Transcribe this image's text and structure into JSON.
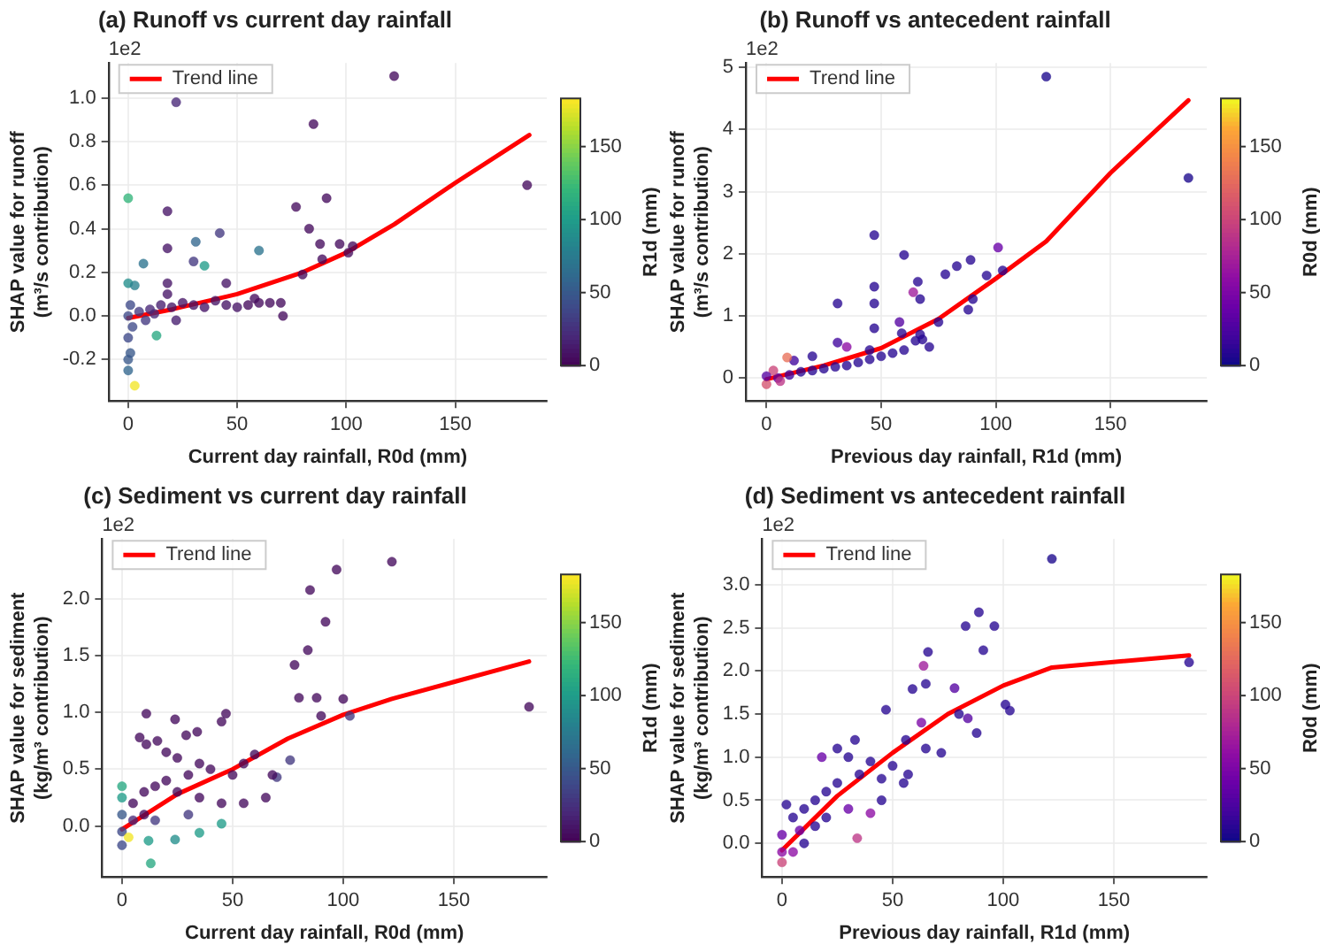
{
  "chart_data": [
    {
      "type": "scatter",
      "title": "(a) Runoff vs current day rainfall",
      "xlabel": "Current day rainfall, R0d (mm)",
      "ylabel": "SHAP value for runoff\n(m³/s contribution)",
      "clabel": "R1d (mm)",
      "annotations": [
        "1e2"
      ],
      "xlim": [
        -9,
        192
      ],
      "xticks": [
        0,
        50,
        100,
        150
      ],
      "ylim": [
        -0.39,
        1.16
      ],
      "yticks": [
        {
          "value": -0.2,
          "label": "-0.2"
        },
        {
          "value": 0,
          "label": "0.0"
        },
        {
          "value": 0.2,
          "label": "0.2"
        },
        {
          "value": 0.4,
          "label": "0.4"
        },
        {
          "value": 0.6,
          "label": "0.6"
        },
        {
          "value": 0.8,
          "label": "0.8"
        },
        {
          "value": 1,
          "label": "1.0"
        }
      ],
      "clim": [
        0,
        183
      ],
      "cticks": [
        0,
        50,
        100,
        150
      ],
      "grid": true,
      "legend": "top left",
      "series": [
        {
          "type": "scatter",
          "marker": "circle",
          "x": [
            122,
            22,
            85,
            183,
            0,
            77,
            18,
            91,
            83,
            42,
            31,
            60,
            18,
            35,
            7,
            30,
            88,
            97,
            103,
            101,
            89,
            80,
            0,
            3,
            13,
            3,
            0,
            0,
            1,
            0,
            2,
            0,
            1,
            5,
            10,
            15,
            18,
            18,
            20,
            25,
            30,
            35,
            40,
            45,
            45,
            50,
            55,
            60,
            65,
            70,
            71,
            58,
            22,
            12,
            8
          ],
          "values": [
            1.1,
            0.98,
            0.88,
            0.6,
            0.54,
            0.5,
            0.48,
            0.54,
            0.4,
            0.38,
            0.34,
            0.3,
            0.31,
            0.23,
            0.24,
            0.25,
            0.33,
            0.33,
            0.32,
            0.29,
            0.26,
            0.19,
            0.15,
            0.14,
            -0.09,
            -0.32,
            -0.25,
            -0.2,
            -0.17,
            -0.1,
            -0.05,
            0,
            0.05,
            0.02,
            0.03,
            0.05,
            0.15,
            0.1,
            0.04,
            0.06,
            0.05,
            0.04,
            0.07,
            0.15,
            0.05,
            0.04,
            0.05,
            0.06,
            0.06,
            0.06,
            0,
            0.08,
            -0.02,
            0.01,
            -0.02
          ],
          "cvalues": [
            5,
            20,
            5,
            5,
            120,
            5,
            10,
            5,
            5,
            30,
            60,
            70,
            10,
            100,
            70,
            30,
            5,
            5,
            5,
            5,
            5,
            5,
            90,
            80,
            110,
            180,
            60,
            50,
            50,
            40,
            40,
            40,
            40,
            30,
            20,
            15,
            10,
            10,
            10,
            10,
            10,
            10,
            10,
            10,
            10,
            10,
            5,
            5,
            5,
            5,
            5,
            5,
            15,
            20,
            30
          ],
          "colors": [
            "#450b5d",
            "#482777",
            "#450b5d",
            "#450b5d",
            "#33b57b",
            "#450b5d",
            "#461466",
            "#450b5d",
            "#450b5d",
            "#433880",
            "#32668e",
            "#2c738e",
            "#461466",
            "#209c89",
            "#2c738e",
            "#433880",
            "#450b5d",
            "#450b5d",
            "#450b5d",
            "#450b5d",
            "#450b5d",
            "#450b5d",
            "#238e8c",
            "#27808e",
            "#28a882",
            "#f2e626",
            "#32668e",
            "#38588b",
            "#38588b",
            "#3e4989",
            "#3e4989",
            "#3e4989",
            "#3e4989",
            "#433880",
            "#482777",
            "#471e6f",
            "#461466",
            "#461466",
            "#461466",
            "#461466",
            "#461466",
            "#461466",
            "#461466",
            "#461466",
            "#461466",
            "#461466",
            "#450b5d",
            "#450b5d",
            "#450b5d",
            "#450b5d",
            "#450b5d",
            "#450b5d",
            "#471e6f",
            "#482777",
            "#433880"
          ]
        },
        {
          "type": "line",
          "name": "Trend line",
          "color": "#ff0000",
          "marker": "none",
          "x": [
            0,
            20,
            50,
            80,
            100,
            122,
            150,
            184
          ],
          "values": [
            -0.01,
            0.03,
            0.1,
            0.2,
            0.29,
            0.42,
            0.61,
            0.83
          ]
        }
      ]
    },
    {
      "type": "scatter",
      "title": "(b) Runoff vs antecedent rainfall",
      "xlabel": "Previous day rainfall, R1d (mm)",
      "ylabel": "SHAP value for runoff\n(m³/s contribution)",
      "clabel": "R0d (mm)",
      "annotations": [
        "1e2"
      ],
      "xlim": [
        -9,
        192
      ],
      "xticks": [
        0,
        50,
        100,
        150
      ],
      "ylim": [
        -0.37,
        5.07
      ],
      "yticks": [
        0,
        1,
        2,
        3,
        4,
        5
      ],
      "clim": [
        0,
        183
      ],
      "cticks": [
        0,
        50,
        100,
        150
      ],
      "grid": true,
      "legend": "top left",
      "series": [
        {
          "type": "scatter",
          "marker": "circle",
          "x": [
            122,
            184,
            47,
            60,
            101,
            89,
            83,
            78,
            96,
            66,
            103,
            47,
            47,
            31,
            67,
            90,
            64,
            88,
            58,
            75,
            47,
            59,
            67,
            71,
            65,
            31,
            35,
            55,
            50,
            45,
            40,
            35,
            30,
            25,
            20,
            20,
            15,
            12,
            10,
            9,
            5,
            3,
            0,
            0,
            6,
            45,
            60,
            68
          ],
          "values": [
            4.85,
            3.22,
            2.3,
            1.98,
            2.1,
            1.9,
            1.8,
            1.67,
            1.65,
            1.55,
            1.73,
            1.47,
            1.2,
            1.2,
            1.27,
            1.27,
            1.38,
            1.1,
            0.9,
            0.9,
            0.8,
            0.72,
            0.7,
            0.5,
            0.6,
            0.57,
            0.5,
            0.4,
            0.35,
            0.3,
            0.25,
            0.2,
            0.18,
            0.15,
            0.12,
            0.35,
            0.1,
            0.28,
            0.05,
            0.33,
            0,
            0.12,
            -0.1,
            0.03,
            -0.05,
            0.45,
            0.45,
            0.62
          ],
          "cvalues": [
            5,
            5,
            10,
            10,
            40,
            10,
            10,
            10,
            10,
            10,
            10,
            10,
            10,
            10,
            10,
            10,
            70,
            10,
            30,
            10,
            10,
            10,
            10,
            10,
            10,
            20,
            60,
            10,
            10,
            10,
            10,
            10,
            10,
            10,
            10,
            10,
            10,
            20,
            20,
            130,
            30,
            100,
            110,
            30,
            90,
            10,
            10,
            10
          ],
          "colors": [
            "#1a078c",
            "#1a078c",
            "#260692",
            "#260692",
            "#6900a8",
            "#260692",
            "#260692",
            "#260692",
            "#260692",
            "#260692",
            "#260692",
            "#260692",
            "#260692",
            "#260692",
            "#260692",
            "#260692",
            "#9e1a9b",
            "#260692",
            "#5402a2",
            "#260692",
            "#260692",
            "#260692",
            "#260692",
            "#260692",
            "#260692",
            "#40049d",
            "#8d0ca4",
            "#260692",
            "#260692",
            "#260692",
            "#260692",
            "#260692",
            "#260692",
            "#260692",
            "#260692",
            "#260692",
            "#260692",
            "#40049d",
            "#40049d",
            "#e87059",
            "#5402a2",
            "#ca457a",
            "#d5536f",
            "#5402a2",
            "#bd3686",
            "#260692",
            "#260692",
            "#260692"
          ]
        },
        {
          "type": "line",
          "name": "Trend line",
          "color": "#ff0000",
          "marker": "none",
          "x": [
            0,
            25,
            50,
            75,
            100,
            122,
            150,
            184
          ],
          "values": [
            -0.02,
            0.2,
            0.48,
            0.95,
            1.6,
            2.2,
            3.3,
            4.47
          ]
        }
      ]
    },
    {
      "type": "scatter",
      "title": "(c) Sediment vs current day rainfall",
      "xlabel": "Current day rainfall, R0d (mm)",
      "ylabel": "SHAP value for sediment\n(kg/m³ contribution)",
      "clabel": "R1d (mm)",
      "annotations": [
        "1e2"
      ],
      "xlim": [
        -9,
        192
      ],
      "xticks": [
        0,
        50,
        100,
        150
      ],
      "ylim": [
        -0.45,
        2.53
      ],
      "yticks": [
        {
          "value": 0,
          "label": "0.0"
        },
        {
          "value": 0.5,
          "label": "0.5"
        },
        {
          "value": 1,
          "label": "1.0"
        },
        {
          "value": 1.5,
          "label": "1.5"
        },
        {
          "value": 2,
          "label": "2.0"
        }
      ],
      "clim": [
        0,
        183
      ],
      "cticks": [
        0,
        50,
        100,
        150
      ],
      "grid": true,
      "legend": "top left",
      "series": [
        {
          "type": "scatter",
          "marker": "circle",
          "x": [
            122,
            97,
            85,
            92,
            84,
            78,
            80,
            88,
            100,
            103,
            90,
            184,
            11,
            24,
            47,
            8,
            16,
            11,
            29,
            34,
            45,
            76,
            70,
            68,
            60,
            55,
            50,
            40,
            35,
            30,
            25,
            20,
            20,
            15,
            10,
            5,
            25,
            35,
            45,
            55,
            65,
            30,
            15,
            10,
            0,
            0,
            0,
            0,
            0,
            12,
            24,
            35,
            45,
            13,
            3,
            5
          ],
          "values": [
            2.33,
            2.26,
            2.08,
            1.8,
            1.55,
            1.42,
            1.13,
            1.13,
            1.12,
            0.97,
            0.97,
            1.05,
            0.99,
            0.94,
            0.99,
            0.78,
            0.75,
            0.72,
            0.8,
            0.83,
            0.92,
            0.58,
            0.43,
            0.45,
            0.63,
            0.55,
            0.45,
            0.5,
            0.55,
            0.45,
            0.6,
            0.65,
            0.4,
            0.35,
            0.3,
            0.2,
            0.3,
            0.25,
            0.2,
            0.2,
            0.25,
            0.1,
            0.05,
            0.1,
            0.35,
            0.25,
            0.1,
            -0.05,
            -0.17,
            -0.13,
            -0.12,
            -0.06,
            0.02,
            -0.33,
            -0.1,
            0.05
          ],
          "cvalues": [
            5,
            5,
            5,
            5,
            5,
            5,
            5,
            5,
            5,
            30,
            5,
            5,
            5,
            5,
            5,
            5,
            5,
            5,
            5,
            5,
            5,
            30,
            30,
            5,
            5,
            5,
            5,
            5,
            5,
            5,
            5,
            5,
            5,
            5,
            5,
            5,
            5,
            5,
            5,
            5,
            5,
            30,
            30,
            5,
            110,
            100,
            50,
            40,
            40,
            100,
            90,
            100,
            100,
            110,
            180,
            20
          ],
          "colors": [
            "#450b5d",
            "#450b5d",
            "#450b5d",
            "#450b5d",
            "#450b5d",
            "#450b5d",
            "#450b5d",
            "#450b5d",
            "#450b5d",
            "#433880",
            "#450b5d",
            "#450b5d",
            "#450b5d",
            "#450b5d",
            "#450b5d",
            "#450b5d",
            "#450b5d",
            "#450b5d",
            "#450b5d",
            "#450b5d",
            "#450b5d",
            "#433880",
            "#433880",
            "#450b5d",
            "#450b5d",
            "#450b5d",
            "#450b5d",
            "#450b5d",
            "#450b5d",
            "#450b5d",
            "#450b5d",
            "#450b5d",
            "#450b5d",
            "#450b5d",
            "#450b5d",
            "#450b5d",
            "#450b5d",
            "#450b5d",
            "#450b5d",
            "#450b5d",
            "#450b5d",
            "#433880",
            "#433880",
            "#450b5d",
            "#28a882",
            "#209c89",
            "#38588b",
            "#3e4989",
            "#3e4989",
            "#209c89",
            "#238e8c",
            "#209c89",
            "#209c89",
            "#28a882",
            "#f2e626",
            "#482777"
          ]
        },
        {
          "type": "line",
          "name": "Trend line",
          "color": "#ff0000",
          "marker": "none",
          "x": [
            0,
            25,
            50,
            75,
            100,
            122,
            150,
            184
          ],
          "values": [
            -0.03,
            0.28,
            0.5,
            0.77,
            0.98,
            1.12,
            1.27,
            1.45
          ]
        }
      ]
    },
    {
      "type": "scatter",
      "title": "(d) Sediment vs antecedent rainfall",
      "xlabel": "Previous day rainfall, R1d (mm)",
      "ylabel": "SHAP value for sediment\n(kg/m³ contribution)",
      "clabel": "R0d (mm)",
      "annotations": [
        "1e2"
      ],
      "xlim": [
        -9,
        192
      ],
      "xticks": [
        0,
        50,
        100,
        150
      ],
      "ylim": [
        -0.39,
        3.53
      ],
      "yticks": [
        {
          "value": 0,
          "label": "0.0"
        },
        {
          "value": 0.5,
          "label": "0.5"
        },
        {
          "value": 1,
          "label": "1.0"
        },
        {
          "value": 1.5,
          "label": "1.5"
        },
        {
          "value": 2,
          "label": "2.0"
        },
        {
          "value": 2.5,
          "label": "2.5"
        },
        {
          "value": 3,
          "label": "3.0"
        }
      ],
      "clim": [
        0,
        183
      ],
      "cticks": [
        0,
        50,
        100,
        150
      ],
      "grid": true,
      "legend": "top left",
      "series": [
        {
          "type": "scatter",
          "marker": "circle",
          "x": [
            122,
            89,
            83,
            96,
            91,
            66,
            64,
            65,
            78,
            59,
            80,
            84,
            101,
            103,
            88,
            184,
            47,
            63,
            56,
            65,
            72,
            33,
            25,
            18,
            30,
            40,
            50,
            55,
            45,
            35,
            25,
            20,
            15,
            10,
            5,
            2,
            0,
            0,
            0,
            5,
            10,
            20,
            30,
            34,
            40,
            45,
            57,
            15,
            8
          ],
          "values": [
            3.3,
            2.68,
            2.52,
            2.52,
            2.24,
            2.22,
            2.06,
            1.85,
            1.8,
            1.79,
            1.5,
            1.45,
            1.61,
            1.54,
            1.28,
            2.1,
            1.55,
            1.4,
            1.2,
            1.1,
            1.05,
            1.2,
            1.1,
            1,
            1,
            0.95,
            0.9,
            0.7,
            0.75,
            0.8,
            0.7,
            0.6,
            0.5,
            0.4,
            0.3,
            0.45,
            0.1,
            -0.1,
            -0.22,
            -0.1,
            0,
            0.3,
            0.4,
            0.06,
            0.35,
            0.5,
            0.8,
            0.2,
            0.15
          ],
          "cvalues": [
            5,
            10,
            10,
            10,
            10,
            10,
            70,
            10,
            30,
            10,
            10,
            30,
            10,
            10,
            10,
            10,
            10,
            50,
            10,
            10,
            10,
            10,
            10,
            40,
            10,
            10,
            10,
            10,
            10,
            10,
            10,
            10,
            10,
            10,
            10,
            10,
            40,
            60,
            100,
            60,
            10,
            10,
            40,
            90,
            60,
            10,
            10,
            10,
            40
          ],
          "colors": [
            "#1a078c",
            "#260692",
            "#260692",
            "#260692",
            "#260692",
            "#260692",
            "#9e1a9b",
            "#260692",
            "#5402a2",
            "#260692",
            "#260692",
            "#5402a2",
            "#260692",
            "#260692",
            "#260692",
            "#260692",
            "#260692",
            "#7b06a6",
            "#260692",
            "#260692",
            "#260692",
            "#260692",
            "#260692",
            "#6900a8",
            "#260692",
            "#260692",
            "#260692",
            "#260692",
            "#260692",
            "#260692",
            "#260692",
            "#260692",
            "#260692",
            "#260692",
            "#260692",
            "#260692",
            "#6900a8",
            "#8d0ca4",
            "#ca457a",
            "#8d0ca4",
            "#260692",
            "#260692",
            "#6900a8",
            "#bd3686",
            "#8d0ca4",
            "#260692",
            "#260692",
            "#260692",
            "#6900a8"
          ]
        },
        {
          "type": "line",
          "name": "Trend line",
          "color": "#ff0000",
          "marker": "none",
          "x": [
            0,
            25,
            50,
            75,
            100,
            122,
            184
          ],
          "values": [
            -0.08,
            0.55,
            1.05,
            1.5,
            1.83,
            2.04,
            2.18
          ]
        }
      ]
    }
  ]
}
